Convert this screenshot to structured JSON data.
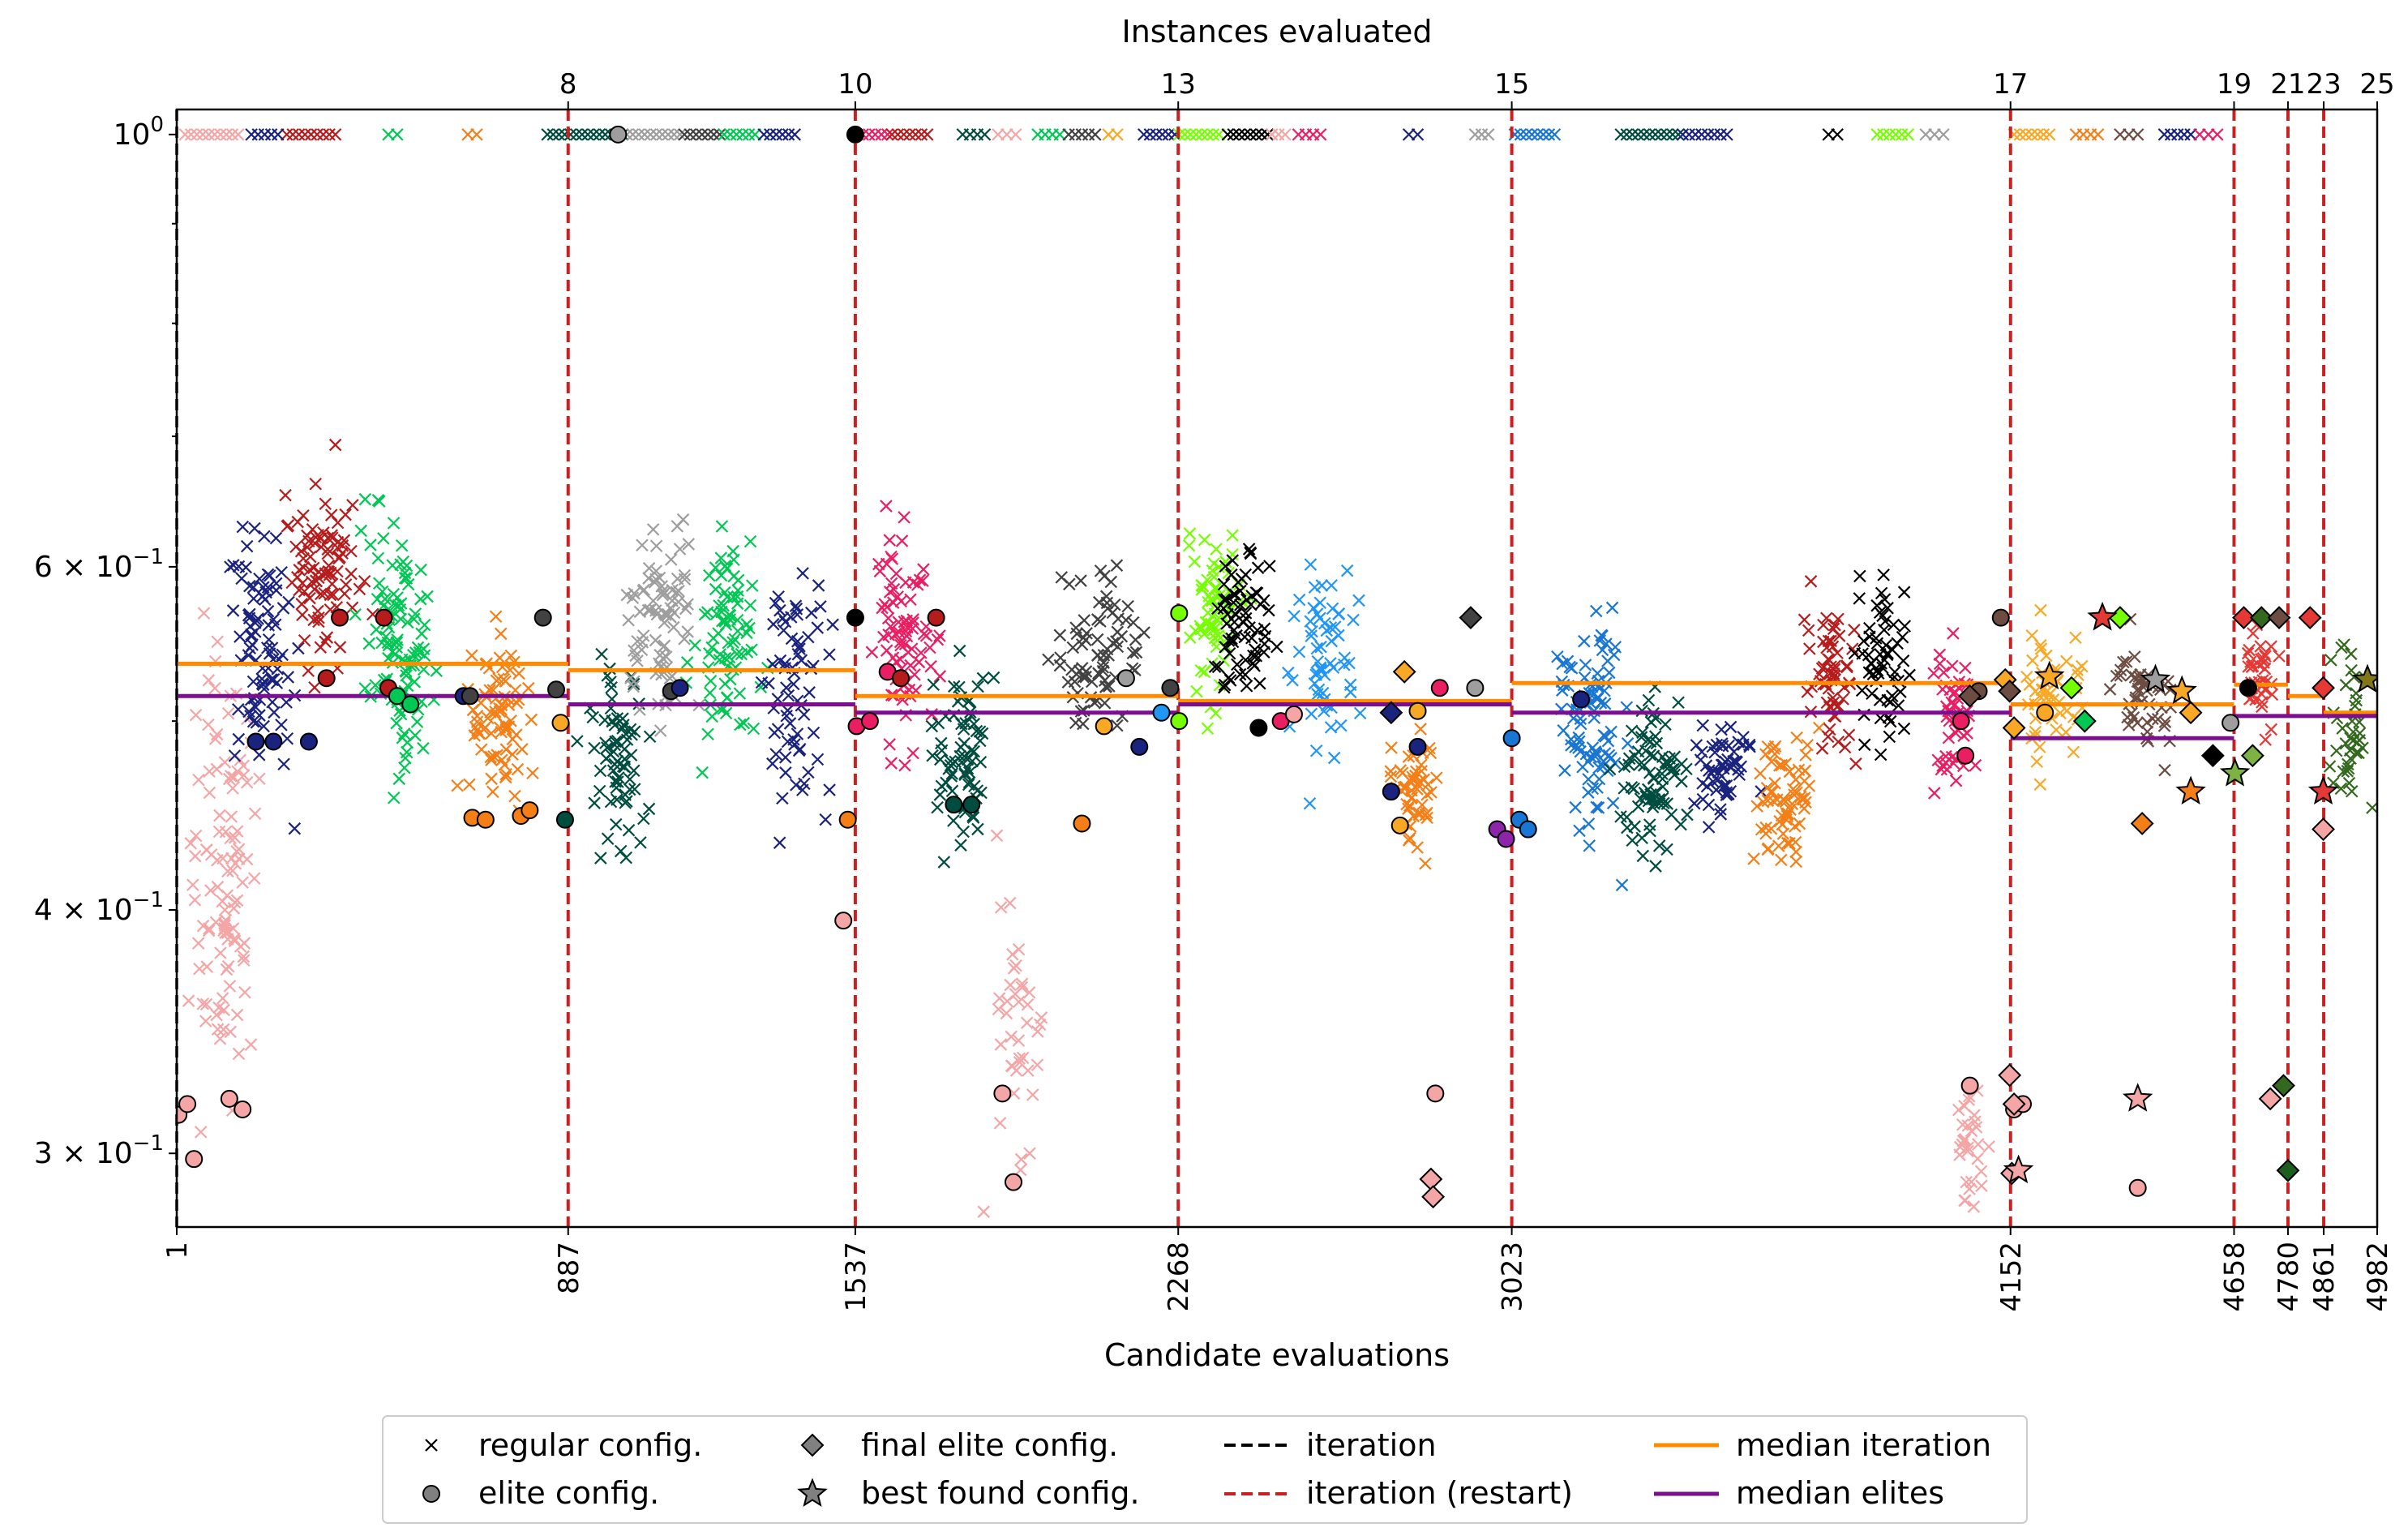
{
  "chart_data": {
    "type": "scatter",
    "xlabel": "Candidate evaluations",
    "x2label": "Instances evaluated",
    "xlim": [
      1,
      4982
    ],
    "ylim": [
      0.275,
      1.03
    ],
    "yscale": "log",
    "y_ticks": [
      {
        "value": 1.0,
        "base": "10",
        "exp": "0",
        "coef": ""
      },
      {
        "value": 0.6,
        "base": "10",
        "exp": "−1",
        "coef": "6 × "
      },
      {
        "value": 0.4,
        "base": "10",
        "exp": "−1",
        "coef": "4 × "
      },
      {
        "value": 0.3,
        "base": "10",
        "exp": "−1",
        "coef": "3 × "
      }
    ],
    "iterations": [
      {
        "x": 1,
        "instances": "",
        "restart": false
      },
      {
        "x": 887,
        "instances": "8",
        "restart": true
      },
      {
        "x": 1537,
        "instances": "10",
        "restart": true
      },
      {
        "x": 2268,
        "instances": "13",
        "restart": true
      },
      {
        "x": 3023,
        "instances": "15",
        "restart": true
      },
      {
        "x": 4152,
        "instances": "17",
        "restart": true
      },
      {
        "x": 4658,
        "instances": "19",
        "restart": true
      },
      {
        "x": 4780,
        "instances": "21",
        "restart": true
      },
      {
        "x": 4861,
        "instances": "23",
        "restart": true
      },
      {
        "x": 4982,
        "instances": "25",
        "restart": false
      }
    ],
    "x_tick_labels": [
      "1",
      "887",
      "1537",
      "2268",
      "3023",
      "4152",
      "4658",
      "4780",
      "4861",
      "4982"
    ],
    "top_tick_labels": [
      "8",
      "10",
      "13",
      "15",
      "17",
      "19",
      "21",
      "23",
      "25"
    ],
    "median_iteration": [
      {
        "x0": 1,
        "x1": 887,
        "y": 0.535
      },
      {
        "x0": 887,
        "x1": 1537,
        "y": 0.531
      },
      {
        "x0": 1537,
        "x1": 2268,
        "y": 0.515
      },
      {
        "x0": 2268,
        "x1": 3023,
        "y": 0.512
      },
      {
        "x0": 3023,
        "x1": 4152,
        "y": 0.523
      },
      {
        "x0": 4152,
        "x1": 4658,
        "y": 0.51
      },
      {
        "x0": 4658,
        "x1": 4780,
        "y": 0.522
      },
      {
        "x0": 4780,
        "x1": 4861,
        "y": 0.515
      },
      {
        "x0": 4861,
        "x1": 4982,
        "y": 0.505
      }
    ],
    "median_elites": [
      {
        "x0": 1,
        "x1": 887,
        "y": 0.515
      },
      {
        "x0": 887,
        "x1": 1537,
        "y": 0.51
      },
      {
        "x0": 1537,
        "x1": 2268,
        "y": 0.505
      },
      {
        "x0": 2268,
        "x1": 3023,
        "y": 0.51
      },
      {
        "x0": 3023,
        "x1": 4152,
        "y": 0.505
      },
      {
        "x0": 4152,
        "x1": 4658,
        "y": 0.49
      },
      {
        "x0": 4658,
        "x1": 4982,
        "y": 0.503
      }
    ],
    "regular_clusters": [
      {
        "x": 100,
        "xs": 70,
        "y": 0.42,
        "ys": 0.09,
        "n": 110,
        "c": "#f4a6a6"
      },
      {
        "x": 200,
        "xs": 60,
        "y": 0.55,
        "ys": 0.07,
        "n": 90,
        "c": "#1a237e"
      },
      {
        "x": 330,
        "xs": 70,
        "y": 0.6,
        "ys": 0.05,
        "n": 90,
        "c": "#b71c1c"
      },
      {
        "x": 500,
        "xs": 60,
        "y": 0.56,
        "ys": 0.07,
        "n": 110,
        "c": "#00c853"
      },
      {
        "x": 730,
        "xs": 60,
        "y": 0.5,
        "ys": 0.04,
        "n": 80,
        "c": "#f57f17"
      },
      {
        "x": 1000,
        "xs": 60,
        "y": 0.48,
        "ys": 0.04,
        "n": 70,
        "c": "#004d40"
      },
      {
        "x": 1100,
        "xs": 70,
        "y": 0.56,
        "ys": 0.05,
        "n": 80,
        "c": "#9e9e9e"
      },
      {
        "x": 1250,
        "xs": 60,
        "y": 0.55,
        "ys": 0.06,
        "n": 80,
        "c": "#00c853"
      },
      {
        "x": 1400,
        "xs": 60,
        "y": 0.52,
        "ys": 0.06,
        "n": 70,
        "c": "#1a237e"
      },
      {
        "x": 1650,
        "xs": 60,
        "y": 0.56,
        "ys": 0.05,
        "n": 80,
        "c": "#e91e63"
      },
      {
        "x": 1780,
        "xs": 50,
        "y": 0.48,
        "ys": 0.04,
        "n": 70,
        "c": "#004d40"
      },
      {
        "x": 1900,
        "xs": 50,
        "y": 0.35,
        "ys": 0.05,
        "n": 40,
        "c": "#f4a6a6"
      },
      {
        "x": 2080,
        "xs": 80,
        "y": 0.54,
        "ys": 0.04,
        "n": 80,
        "c": "#424242"
      },
      {
        "x": 2350,
        "xs": 50,
        "y": 0.57,
        "ys": 0.05,
        "n": 70,
        "c": "#76ff03"
      },
      {
        "x": 2420,
        "xs": 50,
        "y": 0.56,
        "ys": 0.04,
        "n": 70,
        "c": "#000000"
      },
      {
        "x": 2600,
        "xs": 60,
        "y": 0.54,
        "ys": 0.05,
        "n": 60,
        "c": "#2196f3"
      },
      {
        "x": 2800,
        "xs": 40,
        "y": 0.46,
        "ys": 0.03,
        "n": 50,
        "c": "#f57f17"
      },
      {
        "x": 3200,
        "xs": 60,
        "y": 0.5,
        "ys": 0.05,
        "n": 100,
        "c": "#1976d2"
      },
      {
        "x": 3350,
        "xs": 60,
        "y": 0.47,
        "ys": 0.03,
        "n": 80,
        "c": "#004d40"
      },
      {
        "x": 3500,
        "xs": 50,
        "y": 0.47,
        "ys": 0.02,
        "n": 60,
        "c": "#1a237e"
      },
      {
        "x": 3650,
        "xs": 50,
        "y": 0.46,
        "ys": 0.03,
        "n": 70,
        "c": "#f57f17"
      },
      {
        "x": 3750,
        "xs": 50,
        "y": 0.53,
        "ys": 0.04,
        "n": 60,
        "c": "#b71c1c"
      },
      {
        "x": 3860,
        "xs": 50,
        "y": 0.53,
        "ys": 0.04,
        "n": 60,
        "c": "#000000"
      },
      {
        "x": 4020,
        "xs": 40,
        "y": 0.5,
        "ys": 0.04,
        "n": 50,
        "c": "#e91e63"
      },
      {
        "x": 4060,
        "xs": 30,
        "y": 0.3,
        "ys": 0.02,
        "n": 30,
        "c": "#f4a6a6"
      },
      {
        "x": 4250,
        "xs": 60,
        "y": 0.52,
        "ys": 0.04,
        "n": 50,
        "c": "#f9a825"
      },
      {
        "x": 4450,
        "xs": 60,
        "y": 0.52,
        "ys": 0.03,
        "n": 50,
        "c": "#6d4c41"
      },
      {
        "x": 4720,
        "xs": 30,
        "y": 0.53,
        "ys": 0.03,
        "n": 40,
        "c": "#e53935"
      },
      {
        "x": 4920,
        "xs": 40,
        "y": 0.5,
        "ys": 0.04,
        "n": 40,
        "c": "#33691e"
      }
    ],
    "top_crosses": [
      {
        "x0": 20,
        "x1": 140,
        "c": "#f4a6a6"
      },
      {
        "x0": 250,
        "x1": 360,
        "c": "#b71c1c"
      },
      {
        "x0": 170,
        "x1": 230,
        "c": "#1a237e"
      },
      {
        "x0": 480,
        "x1": 500,
        "c": "#00c853"
      },
      {
        "x0": 660,
        "x1": 680,
        "c": "#f57f17"
      },
      {
        "x0": 840,
        "x1": 1010,
        "c": "#004d40"
      },
      {
        "x0": 1020,
        "x1": 1140,
        "c": "#9e9e9e"
      },
      {
        "x0": 1150,
        "x1": 1230,
        "c": "#424242"
      },
      {
        "x0": 1240,
        "x1": 1310,
        "c": "#00c853"
      },
      {
        "x0": 1330,
        "x1": 1400,
        "c": "#1a237e"
      },
      {
        "x0": 1540,
        "x1": 1610,
        "c": "#e91e63"
      },
      {
        "x0": 1620,
        "x1": 1700,
        "c": "#b71c1c"
      },
      {
        "x0": 1780,
        "x1": 1830,
        "c": "#004d40"
      },
      {
        "x0": 1860,
        "x1": 1900,
        "c": "#f4a6a6"
      },
      {
        "x0": 1950,
        "x1": 2000,
        "c": "#00c853"
      },
      {
        "x0": 2020,
        "x1": 2080,
        "c": "#424242"
      },
      {
        "x0": 2110,
        "x1": 2130,
        "c": "#f9a825"
      },
      {
        "x0": 2190,
        "x1": 2260,
        "c": "#1a237e"
      },
      {
        "x0": 2270,
        "x1": 2360,
        "c": "#76ff03"
      },
      {
        "x0": 2380,
        "x1": 2470,
        "c": "#000000"
      },
      {
        "x0": 2480,
        "x1": 2510,
        "c": "#f4a6a6"
      },
      {
        "x0": 2540,
        "x1": 2590,
        "c": "#e91e63"
      },
      {
        "x0": 2790,
        "x1": 2810,
        "c": "#1a237e"
      },
      {
        "x0": 2940,
        "x1": 2970,
        "c": "#9e9e9e"
      },
      {
        "x0": 3030,
        "x1": 3120,
        "c": "#1976d2"
      },
      {
        "x0": 3270,
        "x1": 3400,
        "c": "#004d40"
      },
      {
        "x0": 3410,
        "x1": 3510,
        "c": "#1a237e"
      },
      {
        "x0": 3740,
        "x1": 3760,
        "c": "#000000"
      },
      {
        "x0": 3850,
        "x1": 3920,
        "c": "#76ff03"
      },
      {
        "x0": 3960,
        "x1": 4000,
        "c": "#9e9e9e"
      },
      {
        "x0": 4160,
        "x1": 4240,
        "c": "#f9a825"
      },
      {
        "x0": 4300,
        "x1": 4350,
        "c": "#f57f17"
      },
      {
        "x0": 4400,
        "x1": 4440,
        "c": "#6d4c41"
      },
      {
        "x0": 4500,
        "x1": 4560,
        "c": "#1a237e"
      },
      {
        "x0": 4580,
        "x1": 4620,
        "c": "#e91e63"
      }
    ],
    "elite_points": [
      {
        "x": 5,
        "y": 0.314,
        "c": "#f4a6a6"
      },
      {
        "x": 25,
        "y": 0.318,
        "c": "#f4a6a6"
      },
      {
        "x": 40,
        "y": 0.298,
        "c": "#f4a6a6"
      },
      {
        "x": 120,
        "y": 0.32,
        "c": "#f4a6a6"
      },
      {
        "x": 150,
        "y": 0.316,
        "c": "#f4a6a6"
      },
      {
        "x": 180,
        "y": 0.488,
        "c": "#1a237e"
      },
      {
        "x": 220,
        "y": 0.488,
        "c": "#1a237e"
      },
      {
        "x": 300,
        "y": 0.488,
        "c": "#1a237e"
      },
      {
        "x": 340,
        "y": 0.526,
        "c": "#b71c1c"
      },
      {
        "x": 370,
        "y": 0.565,
        "c": "#b71c1c"
      },
      {
        "x": 470,
        "y": 0.565,
        "c": "#b71c1c"
      },
      {
        "x": 480,
        "y": 0.52,
        "c": "#b71c1c"
      },
      {
        "x": 500,
        "y": 0.515,
        "c": "#00c853"
      },
      {
        "x": 530,
        "y": 0.51,
        "c": "#00c853"
      },
      {
        "x": 650,
        "y": 0.515,
        "c": "#1a237e"
      },
      {
        "x": 665,
        "y": 0.515,
        "c": "#424242"
      },
      {
        "x": 670,
        "y": 0.446,
        "c": "#f57f17"
      },
      {
        "x": 700,
        "y": 0.445,
        "c": "#f57f17"
      },
      {
        "x": 780,
        "y": 0.447,
        "c": "#f57f17"
      },
      {
        "x": 800,
        "y": 0.45,
        "c": "#f57f17"
      },
      {
        "x": 830,
        "y": 0.565,
        "c": "#424242"
      },
      {
        "x": 860,
        "y": 0.519,
        "c": "#424242"
      },
      {
        "x": 870,
        "y": 0.499,
        "c": "#f9a825"
      },
      {
        "x": 880,
        "y": 0.445,
        "c": "#004d40"
      },
      {
        "x": 1000,
        "y": 1.0,
        "c": "#9e9e9e"
      },
      {
        "x": 1120,
        "y": 0.518,
        "c": "#424242"
      },
      {
        "x": 1140,
        "y": 0.52,
        "c": "#1a237e"
      },
      {
        "x": 1510,
        "y": 0.395,
        "c": "#f4a6a6"
      },
      {
        "x": 1520,
        "y": 0.445,
        "c": "#f57f17"
      },
      {
        "x": 1537,
        "y": 1.0,
        "c": "#000000"
      },
      {
        "x": 1537,
        "y": 0.565,
        "c": "#000000"
      },
      {
        "x": 1540,
        "y": 0.497,
        "c": "#e91e63"
      },
      {
        "x": 1570,
        "y": 0.5,
        "c": "#e91e63"
      },
      {
        "x": 1610,
        "y": 0.53,
        "c": "#e91e63"
      },
      {
        "x": 1640,
        "y": 0.526,
        "c": "#b71c1c"
      },
      {
        "x": 1720,
        "y": 0.565,
        "c": "#b71c1c"
      },
      {
        "x": 1760,
        "y": 0.453,
        "c": "#004d40"
      },
      {
        "x": 1800,
        "y": 0.453,
        "c": "#004d40"
      },
      {
        "x": 1870,
        "y": 0.322,
        "c": "#f4a6a6"
      },
      {
        "x": 1895,
        "y": 0.29,
        "c": "#f4a6a6"
      },
      {
        "x": 2050,
        "y": 0.443,
        "c": "#f57f17"
      },
      {
        "x": 2100,
        "y": 0.497,
        "c": "#f9a825"
      },
      {
        "x": 2150,
        "y": 0.526,
        "c": "#9e9e9e"
      },
      {
        "x": 2180,
        "y": 0.485,
        "c": "#1a237e"
      },
      {
        "x": 2230,
        "y": 0.505,
        "c": "#2196f3"
      },
      {
        "x": 2250,
        "y": 0.52,
        "c": "#424242"
      },
      {
        "x": 2270,
        "y": 0.5,
        "c": "#76ff03"
      },
      {
        "x": 2270,
        "y": 0.568,
        "c": "#76ff03"
      },
      {
        "x": 2450,
        "y": 0.496,
        "c": "#000000"
      },
      {
        "x": 2500,
        "y": 0.5,
        "c": "#e91e63"
      },
      {
        "x": 2530,
        "y": 0.504,
        "c": "#f4a6a6"
      },
      {
        "x": 2750,
        "y": 0.46,
        "c": "#1a237e"
      },
      {
        "x": 2770,
        "y": 0.442,
        "c": "#f9a825"
      },
      {
        "x": 2810,
        "y": 0.485,
        "c": "#1a237e"
      },
      {
        "x": 2810,
        "y": 0.506,
        "c": "#f9a825"
      },
      {
        "x": 2850,
        "y": 0.322,
        "c": "#f4a6a6"
      },
      {
        "x": 2860,
        "y": 0.52,
        "c": "#e91e63"
      },
      {
        "x": 2940,
        "y": 0.52,
        "c": "#9e9e9e"
      },
      {
        "x": 2990,
        "y": 0.44,
        "c": "#8e24aa"
      },
      {
        "x": 3010,
        "y": 0.435,
        "c": "#8e24aa"
      },
      {
        "x": 3023,
        "y": 0.49,
        "c": "#1976d2"
      },
      {
        "x": 3040,
        "y": 0.445,
        "c": "#1976d2"
      },
      {
        "x": 3060,
        "y": 0.44,
        "c": "#1976d2"
      },
      {
        "x": 3180,
        "y": 0.513,
        "c": "#1a237e"
      },
      {
        "x": 4040,
        "y": 0.5,
        "c": "#e91e63"
      },
      {
        "x": 4050,
        "y": 0.48,
        "c": "#e91e63"
      },
      {
        "x": 4060,
        "y": 0.325,
        "c": "#f4a6a6"
      },
      {
        "x": 4080,
        "y": 0.518,
        "c": "#6d4c41"
      },
      {
        "x": 4130,
        "y": 0.565,
        "c": "#6d4c41"
      },
      {
        "x": 4160,
        "y": 0.316,
        "c": "#f4a6a6"
      },
      {
        "x": 4180,
        "y": 0.318,
        "c": "#f4a6a6"
      },
      {
        "x": 4230,
        "y": 0.505,
        "c": "#f9a825"
      },
      {
        "x": 4440,
        "y": 0.288,
        "c": "#f4a6a6"
      },
      {
        "x": 4650,
        "y": 0.499,
        "c": "#9e9e9e"
      },
      {
        "x": 4690,
        "y": 0.52,
        "c": "#000000"
      }
    ],
    "final_elites": [
      {
        "x": 2750,
        "y": 0.505,
        "c": "#1a237e"
      },
      {
        "x": 2780,
        "y": 0.53,
        "c": "#f9a825"
      },
      {
        "x": 2840,
        "y": 0.291,
        "c": "#f4a6a6"
      },
      {
        "x": 2845,
        "y": 0.285,
        "c": "#f4a6a6"
      },
      {
        "x": 2930,
        "y": 0.565,
        "c": "#424242"
      },
      {
        "x": 4060,
        "y": 0.515,
        "c": "#6d4c41"
      },
      {
        "x": 4140,
        "y": 0.525,
        "c": "#f9a825"
      },
      {
        "x": 4150,
        "y": 0.518,
        "c": "#6d4c41"
      },
      {
        "x": 4150,
        "y": 0.329,
        "c": "#f4a6a6"
      },
      {
        "x": 4155,
        "y": 0.293,
        "c": "#f4a6a6"
      },
      {
        "x": 4160,
        "y": 0.318,
        "c": "#f4a6a6"
      },
      {
        "x": 4160,
        "y": 0.496,
        "c": "#f9a825"
      },
      {
        "x": 4290,
        "y": 0.52,
        "c": "#76ff03"
      },
      {
        "x": 4320,
        "y": 0.5,
        "c": "#00c853"
      },
      {
        "x": 4400,
        "y": 0.565,
        "c": "#76ff03"
      },
      {
        "x": 4450,
        "y": 0.443,
        "c": "#f57f17"
      },
      {
        "x": 4560,
        "y": 0.505,
        "c": "#f9a825"
      },
      {
        "x": 4610,
        "y": 0.48,
        "c": "#000000"
      },
      {
        "x": 4680,
        "y": 0.565,
        "c": "#e53935"
      },
      {
        "x": 4700,
        "y": 0.48,
        "c": "#7cb342"
      },
      {
        "x": 4720,
        "y": 0.565,
        "c": "#33691e"
      },
      {
        "x": 4740,
        "y": 0.32,
        "c": "#f4a6a6"
      },
      {
        "x": 4760,
        "y": 0.565,
        "c": "#6d4c41"
      },
      {
        "x": 4770,
        "y": 0.325,
        "c": "#33691e"
      },
      {
        "x": 4780,
        "y": 0.294,
        "c": "#1b5e20"
      },
      {
        "x": 4830,
        "y": 0.565,
        "c": "#e53935"
      },
      {
        "x": 4860,
        "y": 0.52,
        "c": "#e53935"
      },
      {
        "x": 4860,
        "y": 0.44,
        "c": "#f4a6a6"
      }
    ],
    "best_found": [
      {
        "x": 4170,
        "y": 0.294,
        "c": "#f4a6a6"
      },
      {
        "x": 4240,
        "y": 0.527,
        "c": "#f9a825"
      },
      {
        "x": 4360,
        "y": 0.565,
        "c": "#e53935"
      },
      {
        "x": 4440,
        "y": 0.32,
        "c": "#f4a6a6"
      },
      {
        "x": 4480,
        "y": 0.525,
        "c": "#9e9e9e"
      },
      {
        "x": 4540,
        "y": 0.518,
        "c": "#f9a825"
      },
      {
        "x": 4560,
        "y": 0.46,
        "c": "#f57f17"
      },
      {
        "x": 4660,
        "y": 0.47,
        "c": "#7cb342"
      },
      {
        "x": 4860,
        "y": 0.46,
        "c": "#e53935"
      },
      {
        "x": 4960,
        "y": 0.525,
        "c": "#827717"
      }
    ],
    "legend": {
      "regular": "regular config.",
      "elite": "elite config.",
      "final_elite": "final elite config.",
      "best": "best found config.",
      "iteration": "iteration",
      "iteration_restart": "iteration (restart)",
      "median_iteration": "median iteration",
      "median_elites": "median elites"
    },
    "colors": {
      "restart_line": "#cc2020",
      "iteration_line": "#000000",
      "median_iteration": "#ff8c00",
      "median_elites": "#7b0f8f"
    }
  }
}
